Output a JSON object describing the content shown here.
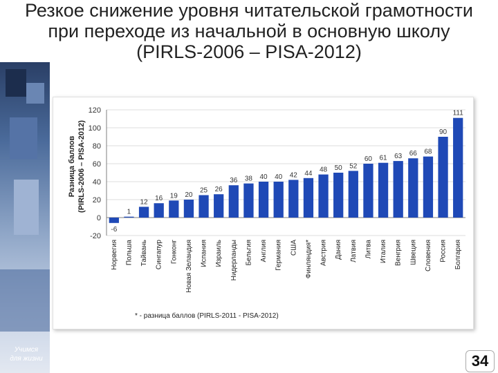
{
  "slide": {
    "title": "Резкое снижение уровня читательской грамотности при переходе из начальной в основную школу (PIRLS-2006 – PISA-2012)",
    "motto_line1": "Учимся",
    "motto_line2": "для жизни",
    "page_number": "34"
  },
  "colors": {
    "bar": "#1f49b6",
    "axis": "#7f7f7f",
    "grid": "#d0d0d0"
  },
  "chart_data": {
    "type": "bar",
    "ylabel_line1": "Разница баллов",
    "ylabel_line2": "(PIRLS-2006 – PISA-2012)",
    "ylim": [
      -20,
      120
    ],
    "yticks": [
      -20,
      0,
      20,
      40,
      60,
      80,
      100,
      120
    ],
    "grid": true,
    "categories": [
      "Норвегия",
      "Польша",
      "Тайвань",
      "Сингапур",
      "Гонконг",
      "Новая Зеландия",
      "Испания",
      "Израиль",
      "Нидерланды",
      "Бельгия",
      "Англия",
      "Германия",
      "США",
      "Финляндия*",
      "Австрия",
      "Дания",
      "Латвия",
      "Литва",
      "Италия",
      "Венгрия",
      "Швеция",
      "Словения",
      "Россия",
      "Болгария"
    ],
    "values": [
      -6,
      1,
      12,
      16,
      19,
      20,
      25,
      26,
      36,
      38,
      40,
      40,
      42,
      44,
      48,
      50,
      52,
      60,
      61,
      63,
      66,
      68,
      90,
      111
    ],
    "value_labels": [
      "-6",
      "1",
      "12",
      "16",
      "19",
      "20",
      "25",
      "26",
      "36",
      "38",
      "40",
      "40",
      "42",
      "44",
      "48",
      "50",
      "52",
      "60",
      "61",
      "63",
      "66",
      "68",
      "90",
      "111"
    ],
    "footnote": "* - разница баллов (PIRLS-2011 - PISA-2012)"
  }
}
